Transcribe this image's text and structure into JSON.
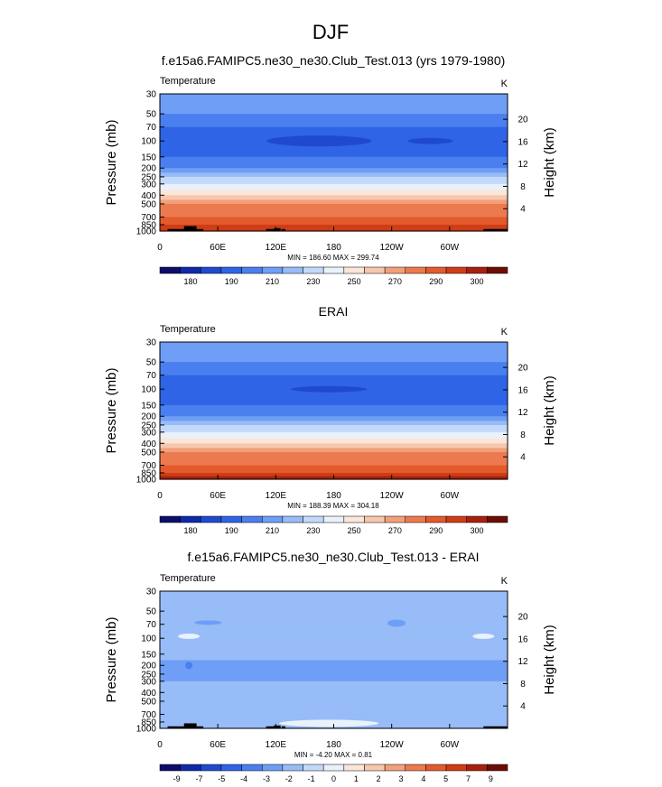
{
  "page": {
    "title": "DJF"
  },
  "colormaps": {
    "abs": [
      "#0d0d6b",
      "#0f2aa8",
      "#1f4ad0",
      "#2f64e6",
      "#4a7ff0",
      "#6e9ef5",
      "#97bcf8",
      "#c3d9fa",
      "#e9f1fb",
      "#fbe6da",
      "#f7c7ad",
      "#f2a07a",
      "#ec7a4e",
      "#e35a2c",
      "#cf3d17",
      "#a8200d",
      "#6e0d05"
    ],
    "diff": [
      "#0d0d6b",
      "#0f2aa8",
      "#1f4ad0",
      "#2f64e6",
      "#4a7ff0",
      "#6e9ef5",
      "#97bcf8",
      "#c3d9fa",
      "#e9f1fb",
      "#fbe6da",
      "#f7c7ad",
      "#f2a07a",
      "#ec7a4e",
      "#e35a2c",
      "#cf3d17",
      "#a8200d",
      "#6e0d05"
    ]
  },
  "chart_data": [
    {
      "type": "heatmap",
      "title": "f.e15a6.FAMIPC5.ne30_ne30.Club_Test.013 (yrs 1979-1980)",
      "left_label": "Temperature",
      "right_label": "K",
      "ylabel": "Pressure (mb)",
      "y2label": "Height (km)",
      "xticks": [
        "0",
        "60E",
        "120E",
        "180",
        "120W",
        "60W"
      ],
      "x_values": [
        0,
        60,
        120,
        180,
        240,
        300
      ],
      "xlim": [
        0,
        360
      ],
      "yscale": "log",
      "ylim": [
        1000,
        30
      ],
      "yticks": [
        "30",
        "50",
        "70",
        "100",
        "150",
        "200",
        "250",
        "300",
        "400",
        "500",
        "700",
        "850",
        "1000"
      ],
      "y_values": [
        30,
        50,
        70,
        100,
        150,
        200,
        250,
        300,
        400,
        500,
        700,
        850,
        1000
      ],
      "y2ticks": [
        "20",
        "16",
        "12",
        "8",
        "4"
      ],
      "y2_values": [
        20,
        16,
        12,
        8,
        4
      ],
      "stats": "MIN = 186.60  MAX = 299.74",
      "colorbar_labels": [
        "180",
        "190",
        "210",
        "230",
        "250",
        "270",
        "290",
        "300"
      ],
      "colormap": "abs",
      "profile_levels": [
        30,
        40,
        50,
        60,
        70,
        85,
        100,
        125,
        150,
        175,
        200,
        225,
        250,
        275,
        300,
        350,
        400,
        450,
        500,
        600,
        700,
        775,
        850,
        925,
        1000
      ],
      "profile_colors": [
        5,
        5,
        4,
        4,
        3,
        3,
        3,
        3,
        4,
        4,
        5,
        6,
        7,
        7,
        8,
        9,
        10,
        11,
        12,
        12,
        13,
        13,
        14,
        14,
        15
      ]
    },
    {
      "type": "heatmap",
      "title": "ERAI",
      "left_label": "Temperature",
      "right_label": "K",
      "ylabel": "Pressure (mb)",
      "y2label": "Height (km)",
      "xticks": [
        "0",
        "60E",
        "120E",
        "180",
        "120W",
        "60W"
      ],
      "x_values": [
        0,
        60,
        120,
        180,
        240,
        300
      ],
      "xlim": [
        0,
        360
      ],
      "yscale": "log",
      "ylim": [
        1000,
        30
      ],
      "yticks": [
        "30",
        "50",
        "70",
        "100",
        "150",
        "200",
        "250",
        "300",
        "400",
        "500",
        "700",
        "850",
        "1000"
      ],
      "y_values": [
        30,
        50,
        70,
        100,
        150,
        200,
        250,
        300,
        400,
        500,
        700,
        850,
        1000
      ],
      "y2ticks": [
        "20",
        "16",
        "12",
        "8",
        "4"
      ],
      "y2_values": [
        20,
        16,
        12,
        8,
        4
      ],
      "stats": "MIN = 188.39  MAX = 304.18",
      "colorbar_labels": [
        "180",
        "190",
        "210",
        "230",
        "250",
        "270",
        "290",
        "300"
      ],
      "colormap": "abs",
      "profile_levels": [
        30,
        40,
        50,
        60,
        70,
        85,
        100,
        125,
        150,
        175,
        200,
        225,
        250,
        275,
        300,
        350,
        400,
        450,
        500,
        600,
        700,
        775,
        850,
        925,
        1000
      ],
      "profile_colors": [
        5,
        5,
        4,
        4,
        3,
        3,
        3,
        3,
        4,
        4,
        5,
        6,
        7,
        7,
        8,
        9,
        10,
        11,
        12,
        12,
        13,
        13,
        14,
        15,
        15
      ]
    },
    {
      "type": "heatmap",
      "title": "f.e15a6.FAMIPC5.ne30_ne30.Club_Test.013 - ERAI",
      "left_label": "Temperature",
      "right_label": "K",
      "ylabel": "Pressure (mb)",
      "y2label": "Height (km)",
      "xticks": [
        "0",
        "60E",
        "120E",
        "180",
        "120W",
        "60W"
      ],
      "x_values": [
        0,
        60,
        120,
        180,
        240,
        300
      ],
      "xlim": [
        0,
        360
      ],
      "yscale": "log",
      "ylim": [
        1000,
        30
      ],
      "yticks": [
        "30",
        "50",
        "70",
        "100",
        "150",
        "200",
        "250",
        "300",
        "400",
        "500",
        "700",
        "850",
        "1000"
      ],
      "y_values": [
        30,
        50,
        70,
        100,
        150,
        200,
        250,
        300,
        400,
        500,
        700,
        850,
        1000
      ],
      "y2ticks": [
        "20",
        "16",
        "12",
        "8",
        "4"
      ],
      "y2_values": [
        20,
        16,
        12,
        8,
        4
      ],
      "stats": "MIN = -4.20  MAX =  0.81",
      "colorbar_labels": [
        "-9",
        "-7",
        "-5",
        "-4",
        "-3",
        "-2",
        "-1",
        "0",
        "1",
        "2",
        "3",
        "4",
        "5",
        "7",
        "9"
      ],
      "colormap": "diff",
      "profile_levels": [
        30,
        40,
        50,
        60,
        70,
        85,
        100,
        125,
        150,
        175,
        200,
        225,
        250,
        275,
        300,
        350,
        400,
        450,
        500,
        600,
        700,
        775,
        850,
        925,
        1000
      ],
      "profile_colors": [
        6,
        6,
        6,
        6,
        6,
        6,
        6,
        6,
        6,
        5,
        5,
        5,
        5,
        5,
        6,
        6,
        6,
        6,
        6,
        6,
        6,
        6,
        6,
        6,
        6
      ]
    }
  ]
}
